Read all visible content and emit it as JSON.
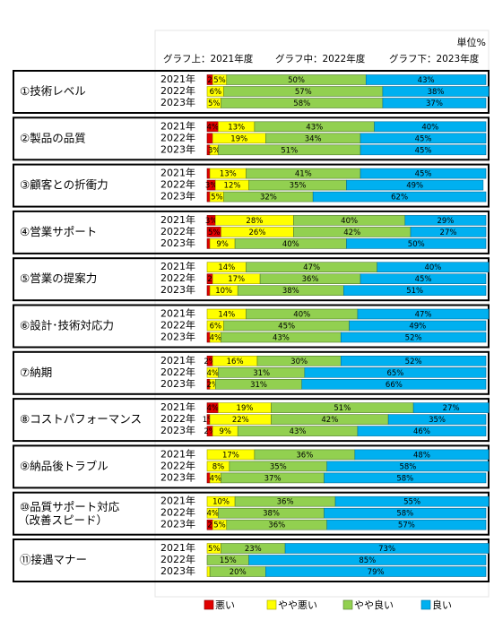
{
  "chart_data": {
    "type": "bar",
    "orientation": "horizontal",
    "stacked": true,
    "unit": "単位%",
    "notes": [
      "グラフ上：2021年度",
      "グラフ中：2022年度",
      "グラフ下：2023年度"
    ],
    "series": [
      {
        "name": "悪い",
        "color": "#e00000"
      },
      {
        "name": "やや悪い",
        "color": "#ffff00"
      },
      {
        "name": "やや良い",
        "color": "#92d050"
      },
      {
        "name": "良い",
        "color": "#00b0f0"
      }
    ],
    "xlim": [
      0,
      100
    ],
    "groups": [
      {
        "label": "①技術レベル",
        "categories": [
          "2021年",
          "2022年",
          "2023年"
        ],
        "series": [
          {
            "values": [
              2,
              0,
              0
            ],
            "value_labels": [
              "2",
              null,
              null
            ]
          },
          {
            "values": [
              5,
              6,
              5
            ],
            "value_labels": [
              "5%",
              "6%",
              "5%"
            ]
          },
          {
            "values": [
              50,
              57,
              58
            ],
            "value_labels": [
              "50%",
              "57%",
              "58%"
            ]
          },
          {
            "values": [
              43,
              38,
              37
            ],
            "value_labels": [
              "43%",
              "38%",
              "37%"
            ]
          }
        ]
      },
      {
        "label": "②製品の品質",
        "categories": [
          "2021年",
          "2022年",
          "2023年"
        ],
        "series": [
          {
            "values": [
              4,
              2,
              1
            ],
            "value_labels": [
              "4%",
              null,
              null
            ]
          },
          {
            "values": [
              13,
              19,
              3
            ],
            "value_labels": [
              "13%",
              "19%",
              "3%"
            ]
          },
          {
            "values": [
              43,
              34,
              51
            ],
            "value_labels": [
              "43%",
              "34%",
              "51%"
            ]
          },
          {
            "values": [
              40,
              45,
              45
            ],
            "value_labels": [
              "40%",
              "45%",
              "45%"
            ]
          }
        ]
      },
      {
        "label": "③顧客との折衝力",
        "categories": [
          "2021年",
          "2022年",
          "2023年"
        ],
        "series": [
          {
            "values": [
              1,
              3,
              1
            ],
            "value_labels": [
              null,
              "3%",
              null
            ]
          },
          {
            "values": [
              13,
              12,
              5
            ],
            "value_labels": [
              "13%",
              "12%",
              "5%"
            ]
          },
          {
            "values": [
              41,
              35,
              32
            ],
            "value_labels": [
              "41%",
              "35%",
              "32%"
            ]
          },
          {
            "values": [
              45,
              49,
              62
            ],
            "value_labels": [
              "45%",
              "49%",
              "62%"
            ]
          }
        ]
      },
      {
        "label": "④営業サポート",
        "categories": [
          "2021年",
          "2022年",
          "2023年"
        ],
        "series": [
          {
            "values": [
              3,
              5,
              1
            ],
            "value_labels": [
              "3%",
              "5%",
              null
            ]
          },
          {
            "values": [
              28,
              26,
              9
            ],
            "value_labels": [
              "28%",
              "26%",
              "9%"
            ]
          },
          {
            "values": [
              40,
              42,
              40
            ],
            "value_labels": [
              "40%",
              "42%",
              "40%"
            ]
          },
          {
            "values": [
              29,
              27,
              50
            ],
            "value_labels": [
              "29%",
              "27%",
              "50%"
            ]
          }
        ]
      },
      {
        "label": "⑤営業の提案力",
        "categories": [
          "2021年",
          "2022年",
          "2023年"
        ],
        "series": [
          {
            "values": [
              0,
              2,
              1
            ],
            "value_labels": [
              null,
              "2",
              null
            ]
          },
          {
            "values": [
              14,
              17,
              10
            ],
            "value_labels": [
              "14%",
              "17%",
              "10%"
            ]
          },
          {
            "values": [
              47,
              36,
              38
            ],
            "value_labels": [
              "47%",
              "36%",
              "38%"
            ]
          },
          {
            "values": [
              40,
              45,
              51
            ],
            "value_labels": [
              "40%",
              "45%",
              "51%"
            ]
          }
        ]
      },
      {
        "label": "⑥設計･技術対応力",
        "categories": [
          "2021年",
          "2022年",
          "2023年"
        ],
        "series": [
          {
            "values": [
              0,
              0,
              1
            ],
            "value_labels": [
              null,
              null,
              null
            ]
          },
          {
            "values": [
              14,
              6,
              4
            ],
            "value_labels": [
              "14%",
              "6%",
              "4%"
            ]
          },
          {
            "values": [
              40,
              45,
              43
            ],
            "value_labels": [
              "40%",
              "45%",
              "43%"
            ]
          },
          {
            "values": [
              47,
              49,
              52
            ],
            "value_labels": [
              "47%",
              "49%",
              "52%"
            ]
          }
        ]
      },
      {
        "label": "⑦納期",
        "categories": [
          "2021年",
          "2022年",
          "2023年"
        ],
        "series": [
          {
            "values": [
              2,
              0,
              1
            ],
            "value_labels": [
              "2%",
              null,
              null
            ]
          },
          {
            "values": [
              16,
              4,
              2
            ],
            "value_labels": [
              "16%",
              "4%",
              "2%"
            ]
          },
          {
            "values": [
              30,
              31,
              31
            ],
            "value_labels": [
              "30%",
              "31%",
              "31%"
            ]
          },
          {
            "values": [
              52,
              65,
              66
            ],
            "value_labels": [
              "52%",
              "65%",
              "66%"
            ]
          }
        ]
      },
      {
        "label": "⑧コストパフォーマンス",
        "categories": [
          "2021年",
          "2022年",
          "2023年"
        ],
        "series": [
          {
            "values": [
              4,
              1,
              2
            ],
            "value_labels": [
              "4%",
              "1%",
              "2%"
            ]
          },
          {
            "values": [
              19,
              22,
              9
            ],
            "value_labels": [
              "19%",
              "22%",
              "9%"
            ]
          },
          {
            "values": [
              51,
              42,
              43
            ],
            "value_labels": [
              "51%",
              "42%",
              "43%"
            ]
          },
          {
            "values": [
              27,
              35,
              46
            ],
            "value_labels": [
              "27%",
              "35%",
              "46%"
            ]
          }
        ]
      },
      {
        "label": "⑨納品後トラブル",
        "categories": [
          "2021年",
          "2022年",
          "2023年"
        ],
        "series": [
          {
            "values": [
              0,
              0,
              1
            ],
            "value_labels": [
              null,
              null,
              null
            ]
          },
          {
            "values": [
              17,
              8,
              4
            ],
            "value_labels": [
              "17%",
              "8%",
              "4%"
            ]
          },
          {
            "values": [
              36,
              35,
              37
            ],
            "value_labels": [
              "36%",
              "35%",
              "37%"
            ]
          },
          {
            "values": [
              48,
              58,
              58
            ],
            "value_labels": [
              "48%",
              "58%",
              "58%"
            ]
          }
        ]
      },
      {
        "label": [
          "⑩品質サポート対応",
          "（改善スピード）"
        ],
        "categories": [
          "2021年",
          "2022年",
          "2023年"
        ],
        "series": [
          {
            "values": [
              0,
              0,
              2
            ],
            "value_labels": [
              null,
              null,
              "2"
            ]
          },
          {
            "values": [
              10,
              4,
              5
            ],
            "value_labels": [
              "10%",
              "4%",
              "5%"
            ]
          },
          {
            "values": [
              36,
              38,
              36
            ],
            "value_labels": [
              "36%",
              "38%",
              "36%"
            ]
          },
          {
            "values": [
              55,
              58,
              57
            ],
            "value_labels": [
              "55%",
              "58%",
              "57%"
            ]
          }
        ]
      },
      {
        "label": "⑪接遇マナー",
        "categories": [
          "2021年",
          "2022年",
          "2023年"
        ],
        "series": [
          {
            "values": [
              0,
              0,
              0
            ],
            "value_labels": [
              null,
              null,
              null
            ]
          },
          {
            "values": [
              5,
              0,
              1
            ],
            "value_labels": [
              "5%",
              null,
              null
            ]
          },
          {
            "values": [
              23,
              15,
              20
            ],
            "value_labels": [
              "23%",
              "15%",
              "20%"
            ]
          },
          {
            "values": [
              73,
              85,
              79
            ],
            "value_labels": [
              "73%",
              "85%",
              "79%"
            ]
          }
        ]
      }
    ]
  }
}
